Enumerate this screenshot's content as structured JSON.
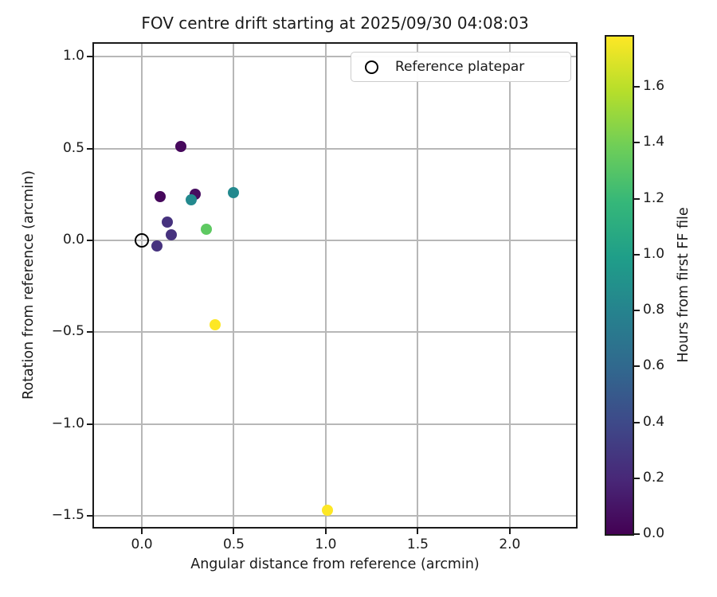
{
  "chart_data": {
    "type": "scatter",
    "title": "FOV centre drift starting at 2025/09/30 04:08:03",
    "xlabel": "Angular distance from reference (arcmin)",
    "ylabel": "Rotation from reference (arcmin)",
    "xlim": [
      -0.26,
      2.36
    ],
    "ylim": [
      -1.56,
      1.07
    ],
    "grid": true,
    "grid_color": "#b7b7b7",
    "xticks": [
      {
        "v": 0.0,
        "label": "0.0"
      },
      {
        "v": 0.5,
        "label": "0.5"
      },
      {
        "v": 1.0,
        "label": "1.0"
      },
      {
        "v": 1.5,
        "label": "1.5"
      },
      {
        "v": 2.0,
        "label": "2.0"
      }
    ],
    "yticks": [
      {
        "v": 1.0,
        "label": "1.0"
      },
      {
        "v": 0.5,
        "label": "0.5"
      },
      {
        "v": 0.0,
        "label": "0.0"
      },
      {
        "v": -0.5,
        "label": "−0.5"
      },
      {
        "v": -1.0,
        "label": "−1.0"
      },
      {
        "v": -1.5,
        "label": "−1.5"
      }
    ],
    "reference_point": {
      "x": 0.0,
      "y": 0.0,
      "label": "Reference platepar"
    },
    "points": [
      {
        "x": 0.21,
        "y": 0.51,
        "hours": 0.0,
        "color": "#46085c"
      },
      {
        "x": 0.1,
        "y": 0.24,
        "hours": 0.05,
        "color": "#46085c"
      },
      {
        "x": 0.29,
        "y": 0.25,
        "hours": 0.1,
        "color": "#470d60"
      },
      {
        "x": 0.14,
        "y": 0.1,
        "hours": 0.3,
        "color": "#46327e"
      },
      {
        "x": 0.16,
        "y": 0.03,
        "hours": 0.33,
        "color": "#46327e"
      },
      {
        "x": 0.08,
        "y": -0.03,
        "hours": 0.36,
        "color": "#46327e"
      },
      {
        "x": 0.27,
        "y": 0.22,
        "hours": 0.85,
        "color": "#23898e"
      },
      {
        "x": 0.5,
        "y": 0.26,
        "hours": 0.88,
        "color": "#23898e"
      },
      {
        "x": 0.35,
        "y": 0.06,
        "hours": 1.39,
        "color": "#5ec962"
      },
      {
        "x": 0.4,
        "y": -0.46,
        "hours": 1.72,
        "color": "#fde725"
      },
      {
        "x": 1.01,
        "y": -1.47,
        "hours": 1.78,
        "color": "#fde725"
      }
    ],
    "colorbar": {
      "label": "Hours from first FF file",
      "min": 0.0,
      "max": 1.78,
      "ticks": [
        {
          "v": 0.0,
          "label": "0.0"
        },
        {
          "v": 0.2,
          "label": "0.2"
        },
        {
          "v": 0.4,
          "label": "0.4"
        },
        {
          "v": 0.6,
          "label": "0.6"
        },
        {
          "v": 0.8,
          "label": "0.8"
        },
        {
          "v": 1.0,
          "label": "1.0"
        },
        {
          "v": 1.2,
          "label": "1.2"
        },
        {
          "v": 1.4,
          "label": "1.4"
        },
        {
          "v": 1.6,
          "label": "1.6"
        }
      ],
      "colormap": "viridis",
      "gradient_stops": [
        "#440154",
        "#482878",
        "#3e4989",
        "#31688e",
        "#26828e",
        "#1f9e89",
        "#35b779",
        "#6ece58",
        "#b5de2b",
        "#fde725"
      ]
    }
  },
  "legend": {
    "label": "Reference platepar"
  }
}
